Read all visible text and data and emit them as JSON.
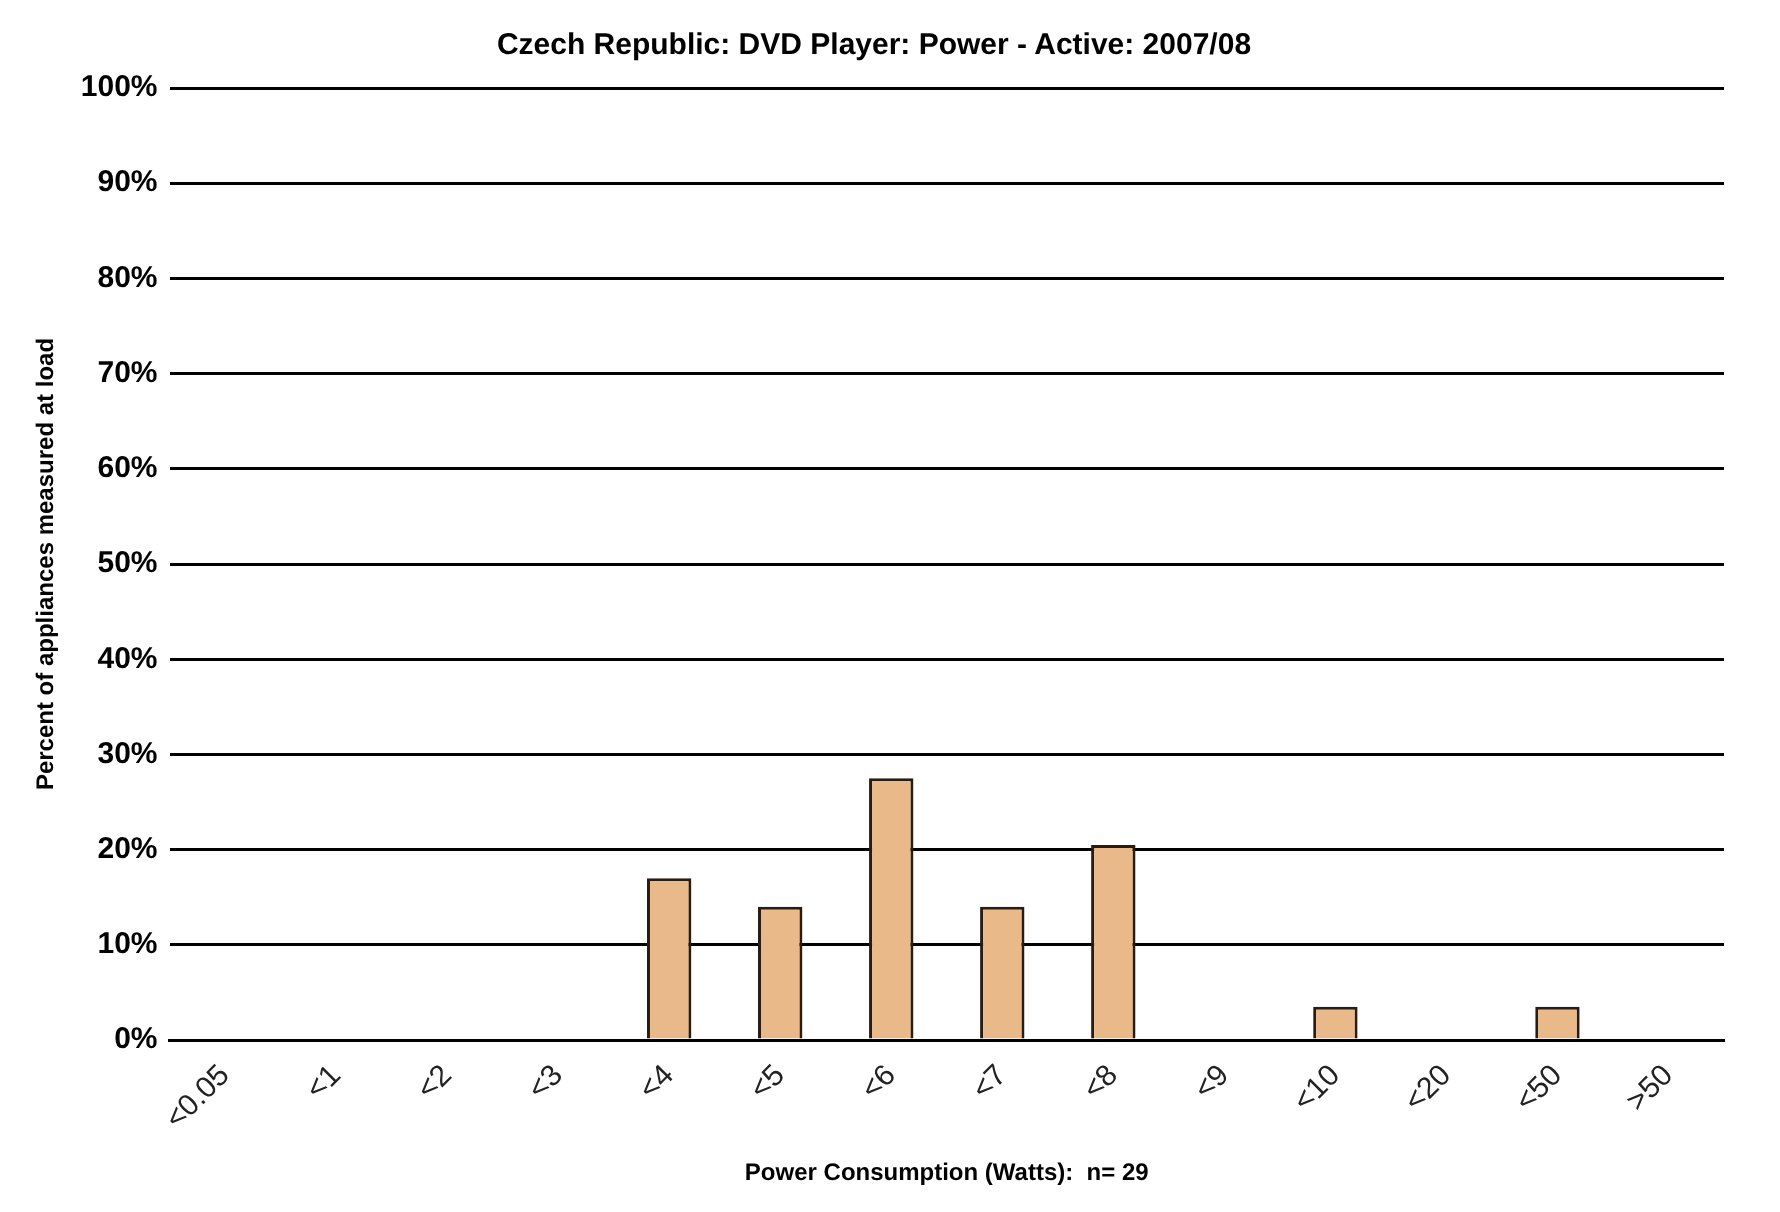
{
  "chart_data": {
    "type": "bar",
    "title": "Czech Republic: DVD Player: Power - Active: 2007/08",
    "xlabel": "Power Consumption (Watts):  n= 29",
    "ylabel": "Percent of appliances measured at load",
    "categories": [
      "<0.05",
      "<1",
      "<2",
      "<3",
      "<4",
      "<5",
      "<6",
      "<7",
      "<8",
      "<9",
      "<10",
      "<20",
      "<50",
      ">50"
    ],
    "values": [
      0,
      0,
      0,
      0,
      17,
      14,
      27.5,
      14,
      20.5,
      0,
      3.5,
      0,
      3.5,
      0
    ],
    "color": "#e9b98a",
    "ylim": [
      0,
      100
    ],
    "yticks": [
      {
        "value": 0,
        "label": "0%"
      },
      {
        "value": 10,
        "label": "10%"
      },
      {
        "value": 20,
        "label": "20%"
      },
      {
        "value": 30,
        "label": "30%"
      },
      {
        "value": 40,
        "label": "40%"
      },
      {
        "value": 50,
        "label": "50%"
      },
      {
        "value": 60,
        "label": "60%"
      },
      {
        "value": 70,
        "label": "70%"
      },
      {
        "value": 80,
        "label": "80%"
      },
      {
        "value": 90,
        "label": "90%"
      },
      {
        "value": 100,
        "label": "100%"
      }
    ],
    "grid": "y",
    "legend": false
  }
}
